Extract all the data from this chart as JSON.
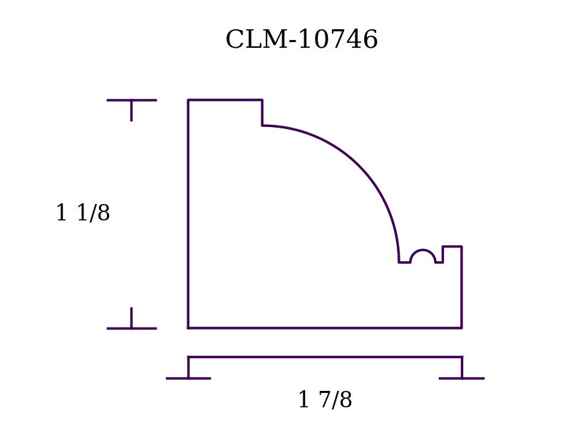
{
  "title": "CLM-10746",
  "color": "#3d0050",
  "bg_color": "#ffffff",
  "title_fontsize": 26,
  "dim_fontsize": 22,
  "dim_label_height": "1 1/8",
  "dim_label_width": "1 7/8",
  "linewidth": 2.5
}
